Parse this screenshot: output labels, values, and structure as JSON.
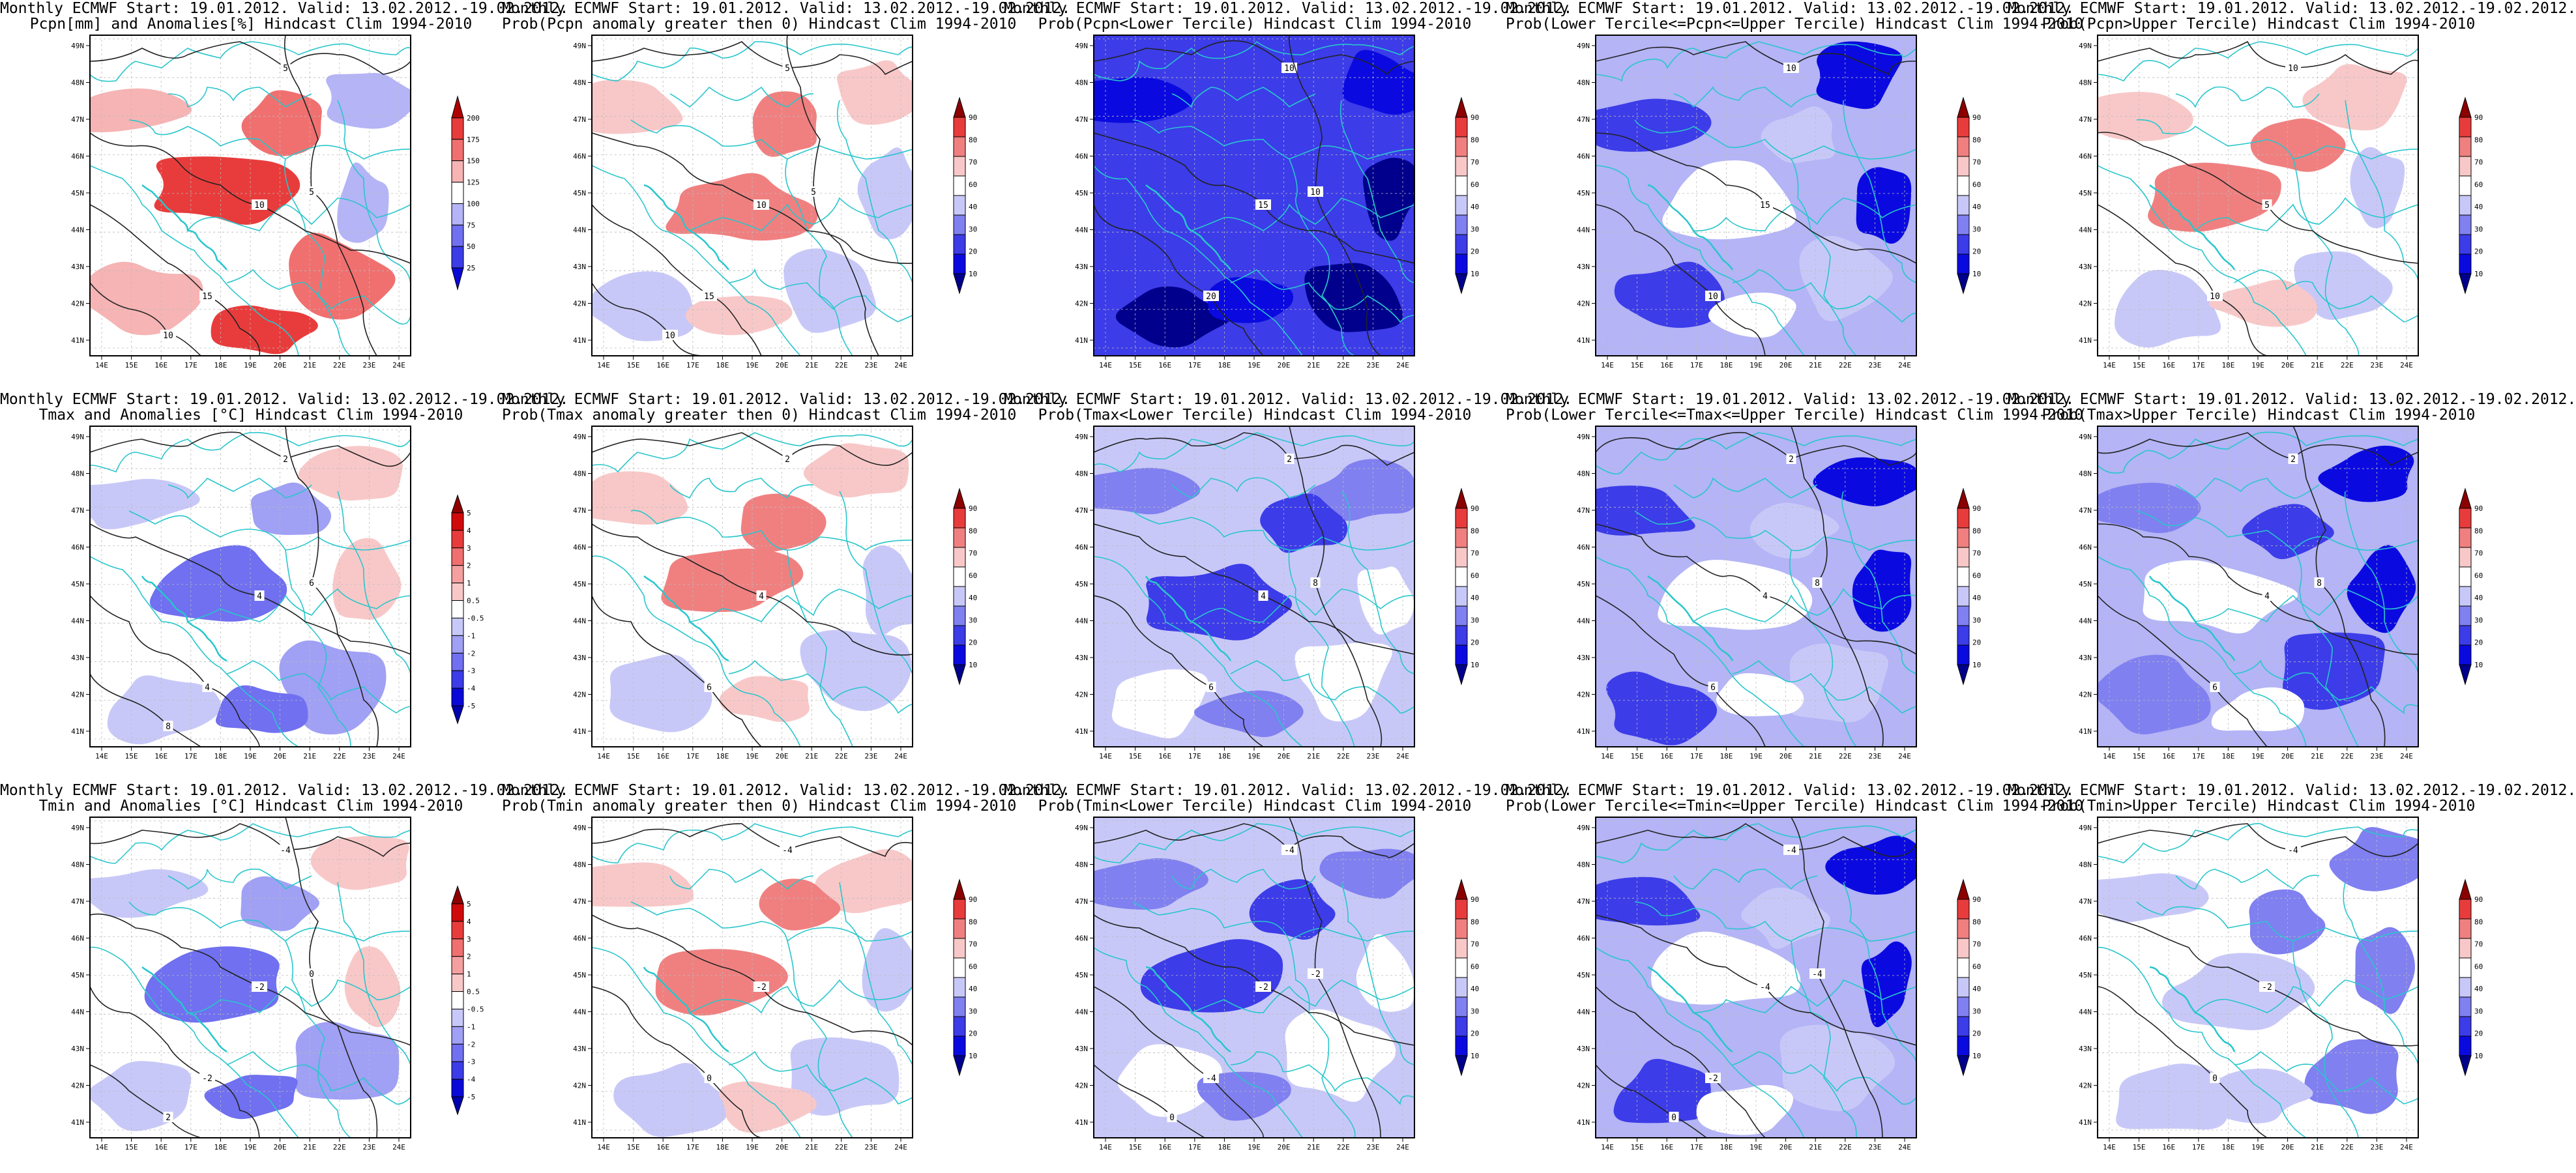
{
  "figure": {
    "lat_labels": [
      "41N",
      "42N",
      "43N",
      "44N",
      "45N",
      "46N",
      "47N",
      "48N",
      "49N"
    ],
    "lon_labels": [
      "14E",
      "15E",
      "16E",
      "17E",
      "18E",
      "19E",
      "20E",
      "21E",
      "22E",
      "23E",
      "24E"
    ],
    "colors": {
      "contour": "#222222",
      "border": "#28c6cc",
      "frame": "#000000",
      "white": "#ffffff"
    }
  },
  "colorbars": {
    "pcpn_anom": {
      "labels": [
        "25",
        "50",
        "75",
        "100",
        "125",
        "150",
        "175",
        "200"
      ],
      "colors": [
        "#0a0ad8",
        "#3c3ce8",
        "#7070f0",
        "#b4b4f6",
        "#ffffff",
        "#f6b4b4",
        "#f07070",
        "#e83c3c",
        "#b00000"
      ]
    },
    "temp_anom": {
      "labels": [
        "-5",
        "-4",
        "-3",
        "-2",
        "-1",
        "-0.5",
        "0.5",
        "1",
        "2",
        "3",
        "4",
        "5"
      ],
      "colors": [
        "#0000b0",
        "#0a0ad8",
        "#3c3ce8",
        "#7070f0",
        "#a0a0f4",
        "#c8c8f8",
        "#ffffff",
        "#f8c8c8",
        "#f4a0a0",
        "#f07070",
        "#e83c3c",
        "#d00a0a",
        "#900000"
      ]
    },
    "prob": {
      "labels": [
        "10",
        "20",
        "30",
        "40",
        "60",
        "70",
        "80",
        "90"
      ],
      "colors": [
        "#00008c",
        "#0a0ae0",
        "#3c3ce8",
        "#8080f0",
        "#c8c8f8",
        "#ffffff",
        "#f8c8c8",
        "#f08080",
        "#e83c3c",
        "#8c0000"
      ]
    }
  },
  "panels": [
    {
      "title1": "Monthly ECMWF Start: 19.01.2012. Valid: 13.02.2012.-19.02.2012.",
      "title2": "Pcpn[mm] and Anomalies[%] Hindcast Clim 1994-2010",
      "bar": "pcpn_anom",
      "contour_labels": [
        "5",
        "10",
        "15",
        "5",
        "10"
      ]
    },
    {
      "title1": "Monthly ECMWF Start: 19.01.2012. Valid: 13.02.2012.-19.02.2012.",
      "title2": "Prob(Pcpn anomaly greater then 0) Hindcast Clim 1994-2010",
      "bar": "prob",
      "contour_labels": [
        "5",
        "10",
        "15",
        "5",
        "10"
      ]
    },
    {
      "title1": "Monthly ECMWF Start: 19.01.2012. Valid: 13.02.2012.-19.02.2012.",
      "title2": "Prob(Pcpn<Lower Tercile) Hindcast Clim 1994-2010",
      "bar": "prob",
      "contour_labels": [
        "10",
        "15",
        "20",
        "10"
      ]
    },
    {
      "title1": "Monthly ECMWF Start: 19.01.2012. Valid: 13.02.2012.-19.02.2012.",
      "title2": "Prob(Lower Tercile<=Pcpn<=Upper Tercile) Hindcast Clim 1994-2010",
      "bar": "prob",
      "contour_labels": [
        "10",
        "15",
        "10"
      ]
    },
    {
      "title1": "Monthly ECMWF Start: 19.01.2012. Valid: 13.02.2012.-19.02.2012.",
      "title2": "Prob(Pcpn>Upper Tercile) Hindcast Clim 1994-2010",
      "bar": "prob",
      "contour_labels": [
        "10",
        "5",
        "10"
      ]
    },
    {
      "title1": "Monthly ECMWF Start: 19.01.2012. Valid: 13.02.2012.-19.02.2012.",
      "title2": "Tmax and Anomalies [°C] Hindcast Clim 1994-2010",
      "bar": "temp_anom",
      "contour_labels": [
        "2",
        "4",
        "4",
        "6",
        "8"
      ]
    },
    {
      "title1": "Monthly ECMWF Start: 19.01.2012. Valid: 13.02.2012.-19.02.2012.",
      "title2": "Prob(Tmax anomaly greater then 0) Hindcast Clim 1994-2010",
      "bar": "prob",
      "contour_labels": [
        "2",
        "4",
        "6"
      ]
    },
    {
      "title1": "Monthly ECMWF Start: 19.01.2012. Valid: 13.02.2012.-19.02.2012.",
      "title2": "Prob(Tmax<Lower Tercile) Hindcast Clim 1994-2010",
      "bar": "prob",
      "contour_labels": [
        "2",
        "4",
        "6",
        "8"
      ]
    },
    {
      "title1": "Monthly ECMWF Start: 19.01.2012. Valid: 13.02.2012.-19.02.2012.",
      "title2": "Prob(Lower Tercile<=Tmax<=Upper Tercile) Hindcast Clim 1994-2010",
      "bar": "prob",
      "contour_labels": [
        "2",
        "4",
        "6",
        "8"
      ]
    },
    {
      "title1": "Monthly ECMWF Start: 19.01.2012. Valid: 13.02.2012.-19.02.2012.",
      "title2": "Prob(Tmax>Upper Tercile) Hindcast Clim 1994-2010",
      "bar": "prob",
      "contour_labels": [
        "2",
        "4",
        "6",
        "8"
      ]
    },
    {
      "title1": "Monthly ECMWF Start: 19.01.2012. Valid: 13.02.2012.-19.02.2012.",
      "title2": "Tmin and Anomalies [°C] Hindcast Clim 1994-2010",
      "bar": "temp_anom",
      "contour_labels": [
        "-4",
        "-2",
        "-2",
        "0",
        "2"
      ]
    },
    {
      "title1": "Monthly ECMWF Start: 19.01.2012. Valid: 13.02.2012.-19.02.2012.",
      "title2": "Prob(Tmin anomaly greater then 0) Hindcast Clim 1994-2010",
      "bar": "prob",
      "contour_labels": [
        "-4",
        "-2",
        "0"
      ]
    },
    {
      "title1": "Monthly ECMWF Start: 19.01.2012. Valid: 13.02.2012.-19.02.2012.",
      "title2": "Prob(Tmin<Lower Tercile) Hindcast Clim 1994-2010",
      "bar": "prob",
      "contour_labels": [
        "-4",
        "-2",
        "-4",
        "-2",
        "0"
      ]
    },
    {
      "title1": "Monthly ECMWF Start: 19.01.2012. Valid: 13.02.2012.-19.02.2012.",
      "title2": "Prob(Lower Tercile<=Tmin<=Upper Tercile) Hindcast Clim 1994-2010",
      "bar": "prob",
      "contour_labels": [
        "-4",
        "-4",
        "-2",
        "-4",
        "0"
      ]
    },
    {
      "title1": "Monthly ECMWF Start: 19.01.2012. Valid: 13.02.2012.-19.02.2012.",
      "title2": "Prob(Tmin>Upper Tercile) Hindcast Clim 1994-2010",
      "bar": "prob",
      "contour_labels": [
        "-4",
        "-2",
        "0"
      ]
    }
  ]
}
